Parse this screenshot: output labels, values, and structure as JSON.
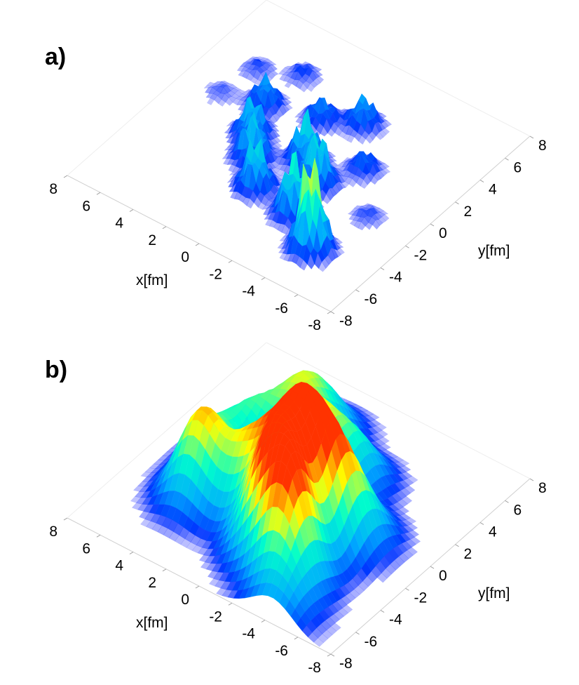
{
  "chart_data": [
    {
      "type": "surface3d",
      "panel_label": "a)",
      "style": "spiky",
      "xlabel": "x[fm]",
      "ylabel": "y[fm]",
      "xlim": [
        8,
        -8
      ],
      "ylim": [
        -8,
        8
      ],
      "x_ticks": [
        "8",
        "6",
        "4",
        "2",
        "0",
        "-2",
        "-4",
        "-6",
        "-8"
      ],
      "y_ticks": [
        "8",
        "6",
        "4",
        "2",
        "0",
        "-2",
        "-4",
        "-6",
        "-8"
      ],
      "colormap": [
        "#0000ff",
        "#00aaff",
        "#00ffcc",
        "#ffff00",
        "#ff3300"
      ],
      "peaks": [
        {
          "x": -4.6,
          "y": -5.1,
          "height": 0.95
        },
        {
          "x": -2.4,
          "y": -3.6,
          "height": 0.6
        },
        {
          "x": -2.0,
          "y": -1.2,
          "height": 0.55
        },
        {
          "x": 0.2,
          "y": -3.2,
          "height": 0.5
        },
        {
          "x": -0.6,
          "y": -0.2,
          "height": 0.5
        },
        {
          "x": 1.6,
          "y": -1.6,
          "height": 0.45
        },
        {
          "x": 2.6,
          "y": -0.3,
          "height": 0.4
        },
        {
          "x": 3.4,
          "y": 1.8,
          "height": 0.3
        },
        {
          "x": 0.6,
          "y": 2.6,
          "height": 0.25
        },
        {
          "x": -1.2,
          "y": 3.6,
          "height": 0.3
        },
        {
          "x": 5.6,
          "y": 1.2,
          "height": 0.08
        },
        {
          "x": 5.2,
          "y": 3.6,
          "height": 0.1
        },
        {
          "x": 3.2,
          "y": 4.6,
          "height": 0.12
        },
        {
          "x": -5.4,
          "y": -1.6,
          "height": 0.1
        },
        {
          "x": -3.2,
          "y": 1.0,
          "height": 0.2
        }
      ]
    },
    {
      "type": "surface3d",
      "panel_label": "b)",
      "style": "smooth",
      "xlabel": "x[fm]",
      "ylabel": "y[fm]",
      "xlim": [
        8,
        -8
      ],
      "ylim": [
        -8,
        8
      ],
      "x_ticks": [
        "8",
        "6",
        "4",
        "2",
        "0",
        "-2",
        "-4",
        "-6",
        "-8"
      ],
      "y_ticks": [
        "8",
        "6",
        "4",
        "2",
        "0",
        "-2",
        "-4",
        "-6",
        "-8"
      ],
      "colormap": [
        "#0000ff",
        "#00aaff",
        "#00ffcc",
        "#ffff00",
        "#ff3300"
      ],
      "peaks": [
        {
          "x": -3.4,
          "y": -5.2,
          "height": 0.95
        },
        {
          "x": -1.4,
          "y": -4.3,
          "height": 0.85
        },
        {
          "x": -2.0,
          "y": -2.2,
          "height": 0.75
        },
        {
          "x": 3.6,
          "y": -3.2,
          "height": 0.7
        },
        {
          "x": 1.0,
          "y": -2.6,
          "height": 0.6
        },
        {
          "x": -0.6,
          "y": -1.0,
          "height": 0.65
        },
        {
          "x": 0.2,
          "y": 1.2,
          "height": 0.55
        },
        {
          "x": -3.6,
          "y": -2.0,
          "height": 0.6
        },
        {
          "x": 2.0,
          "y": 2.8,
          "height": 0.45
        },
        {
          "x": 3.4,
          "y": 1.0,
          "height": 0.4
        },
        {
          "x": -1.6,
          "y": 2.4,
          "height": 0.4
        },
        {
          "x": -4.2,
          "y": -0.6,
          "height": 0.35
        },
        {
          "x": -4.6,
          "y": -7.2,
          "height": 0.25
        },
        {
          "x": 1.6,
          "y": 4.4,
          "height": 0.3
        },
        {
          "x": 4.2,
          "y": -1.0,
          "height": 0.35
        }
      ]
    }
  ]
}
